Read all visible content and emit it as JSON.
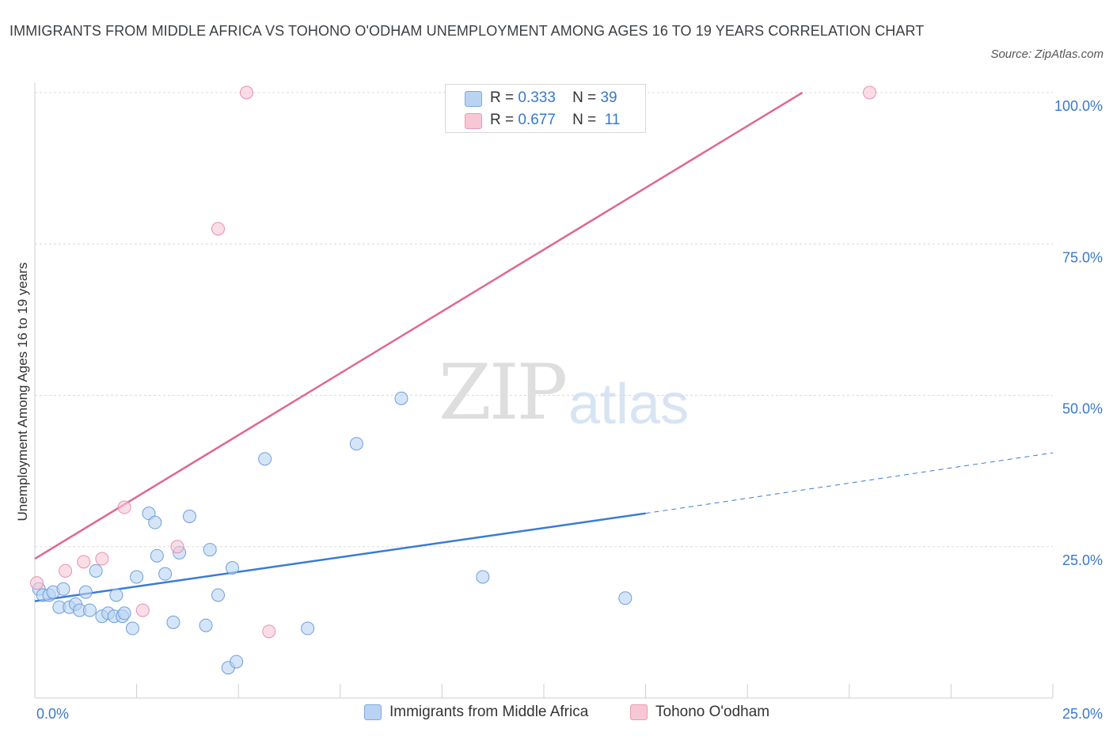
{
  "title": "IMMIGRANTS FROM MIDDLE AFRICA VS TOHONO O'ODHAM UNEMPLOYMENT AMONG AGES 16 TO 19 YEARS CORRELATION CHART",
  "source": "Source: ZipAtlas.com",
  "watermark": {
    "zip": "ZIP",
    "atlas": "atlas"
  },
  "colors": {
    "blue": "#3a7bd5",
    "blue_fill": "#b9d3f3",
    "pink": "#e0688f",
    "pink_fill": "#f8c7d6",
    "tick_label": "#3a78c9",
    "grid": "#dcdcdc"
  },
  "legend": {
    "r_label": "R =",
    "n_label": "N =",
    "rows": [
      {
        "r": "0.333",
        "n": "39"
      },
      {
        "r": "0.677",
        "n": "11"
      }
    ]
  },
  "chart_data": {
    "type": "scatter",
    "title": "IMMIGRANTS FROM MIDDLE AFRICA VS TOHONO O'ODHAM UNEMPLOYMENT AMONG AGES 16 TO 19 YEARS CORRELATION CHART",
    "xlabel": "",
    "ylabel": "Unemployment Among Ages 16 to 19 years",
    "xlim": [
      0,
      25
    ],
    "ylim": [
      0,
      100
    ],
    "x_tick_labels": [
      "0.0%",
      "25.0%"
    ],
    "y_ticks": [
      25,
      50,
      75,
      100
    ],
    "y_tick_labels": [
      "25.0%",
      "50.0%",
      "75.0%",
      "100.0%"
    ],
    "grid": true,
    "legend_position": "top-center",
    "series": [
      {
        "name": "Immigrants from Middle Africa",
        "color": "#3a7bd5",
        "points": [
          [
            0.1,
            18.0
          ],
          [
            0.2,
            17.0
          ],
          [
            0.35,
            17.0
          ],
          [
            0.45,
            17.5
          ],
          [
            0.6,
            15.0
          ],
          [
            0.7,
            18.0
          ],
          [
            0.85,
            15.0
          ],
          [
            1.0,
            15.5
          ],
          [
            1.1,
            14.5
          ],
          [
            1.25,
            17.5
          ],
          [
            1.35,
            14.5
          ],
          [
            1.5,
            21.0
          ],
          [
            1.65,
            13.5
          ],
          [
            1.8,
            14.0
          ],
          [
            1.95,
            13.5
          ],
          [
            2.0,
            17.0
          ],
          [
            2.15,
            13.5
          ],
          [
            2.2,
            14.0
          ],
          [
            2.4,
            11.5
          ],
          [
            2.5,
            20.0
          ],
          [
            2.8,
            30.5
          ],
          [
            2.95,
            29.0
          ],
          [
            3.0,
            23.5
          ],
          [
            3.2,
            20.5
          ],
          [
            3.4,
            12.5
          ],
          [
            3.55,
            24.0
          ],
          [
            3.8,
            30.0
          ],
          [
            4.2,
            12.0
          ],
          [
            4.3,
            24.5
          ],
          [
            4.5,
            17.0
          ],
          [
            4.75,
            5.0
          ],
          [
            4.85,
            21.5
          ],
          [
            4.95,
            6.0
          ],
          [
            5.65,
            39.5
          ],
          [
            6.7,
            11.5
          ],
          [
            7.9,
            42.0
          ],
          [
            9.0,
            49.5
          ],
          [
            11.0,
            20.0
          ],
          [
            14.5,
            16.5
          ]
        ],
        "trend": {
          "x_start": 0,
          "y_start": 16.0,
          "x_solid_end": 15.0,
          "y_solid_end": 30.5,
          "x_end": 25.0,
          "y_end": 40.5
        }
      },
      {
        "name": "Tohono O'odham",
        "color": "#e0688f",
        "points": [
          [
            0.05,
            19.0
          ],
          [
            0.75,
            21.0
          ],
          [
            1.2,
            22.5
          ],
          [
            1.65,
            23.0
          ],
          [
            2.2,
            31.5
          ],
          [
            2.65,
            14.5
          ],
          [
            3.5,
            25.0
          ],
          [
            4.5,
            77.5
          ],
          [
            5.2,
            100.0
          ],
          [
            5.75,
            11.0
          ],
          [
            20.5,
            100.0
          ]
        ],
        "trend": {
          "x_start": 0,
          "y_start": 23.0,
          "x_end": 18.85,
          "y_end": 100.0
        }
      }
    ]
  }
}
